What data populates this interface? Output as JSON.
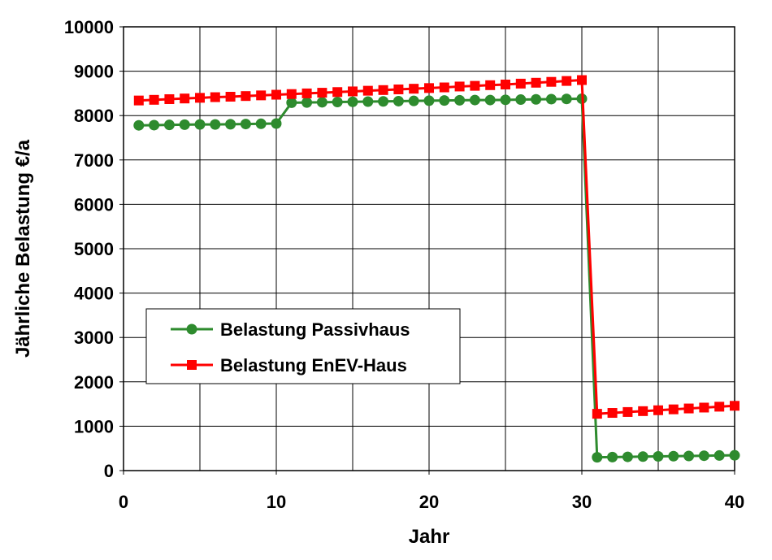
{
  "chart_data": {
    "type": "line",
    "xlabel": "Jahr",
    "ylabel": "Jährliche Belastung €/a",
    "xlim": [
      0,
      40
    ],
    "ylim": [
      0,
      10000
    ],
    "x_ticks": [
      0,
      10,
      20,
      30,
      40
    ],
    "y_ticks": [
      0,
      1000,
      2000,
      3000,
      4000,
      5000,
      6000,
      7000,
      8000,
      9000,
      10000
    ],
    "grid": true,
    "legend_position": "lower-left",
    "x": [
      1,
      2,
      3,
      4,
      5,
      6,
      7,
      8,
      9,
      10,
      11,
      12,
      13,
      14,
      15,
      16,
      17,
      18,
      19,
      20,
      21,
      22,
      23,
      24,
      25,
      26,
      27,
      28,
      29,
      30,
      31,
      32,
      33,
      34,
      35,
      36,
      37,
      38,
      39,
      40
    ],
    "series": [
      {
        "name": "Belastung Passivhaus",
        "color": "#2e8b2e",
        "marker": "circle",
        "values": [
          7780,
          7785,
          7790,
          7795,
          7800,
          7800,
          7805,
          7810,
          7815,
          7820,
          8290,
          8295,
          8300,
          8305,
          8310,
          8315,
          8320,
          8325,
          8330,
          8335,
          8340,
          8345,
          8350,
          8350,
          8355,
          8360,
          8365,
          8370,
          8375,
          8380,
          300,
          305,
          310,
          315,
          320,
          325,
          330,
          335,
          340,
          345
        ]
      },
      {
        "name": "Belastung EnEV-Haus",
        "color": "#ff0000",
        "marker": "square",
        "values": [
          8340,
          8355,
          8370,
          8385,
          8400,
          8415,
          8425,
          8440,
          8455,
          8470,
          8485,
          8500,
          8515,
          8530,
          8545,
          8560,
          8575,
          8590,
          8605,
          8620,
          8635,
          8655,
          8670,
          8685,
          8700,
          8720,
          8740,
          8760,
          8780,
          8800,
          1280,
          1300,
          1320,
          1340,
          1360,
          1380,
          1400,
          1420,
          1440,
          1460
        ]
      }
    ]
  }
}
